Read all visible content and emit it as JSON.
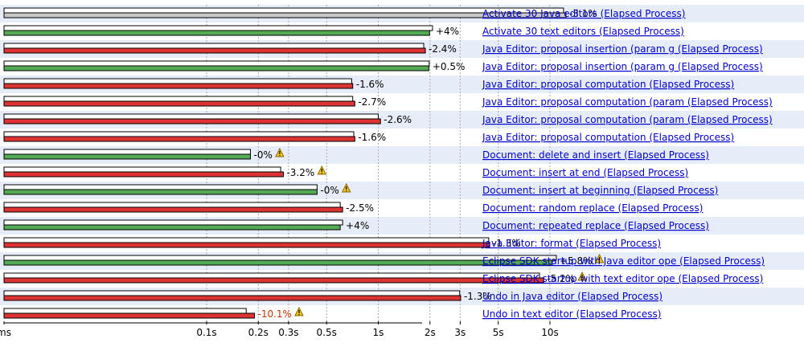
{
  "chart_data": {
    "type": "bar",
    "x_scale": "log",
    "x_ticks": [
      "ms",
      "0.1s",
      "0.2s",
      "0.3s",
      "0.5s",
      "1s",
      "2s",
      "3s",
      "5s",
      "10s"
    ],
    "legend_position": "none",
    "colors": {
      "baseline_bar": "#ffffff",
      "improved_bar": "#55aa55",
      "regressed_bar": "#dd3333",
      "neutral_bar": "#c8c8c8",
      "link": "#0000cc",
      "highlight_delta": "#cc3300",
      "row_band": "#e6ecf8",
      "gridline": "#aaaaaa"
    },
    "rows": [
      {
        "label": "Activate 30 Java editors (Elapsed Process)",
        "baseline": 12.0,
        "current": 12.4,
        "delta": "-3.1%",
        "status": "neutral",
        "warning": false
      },
      {
        "label": "Activate 30 text editors (Elapsed Process)",
        "baseline": 2.07,
        "current": 1.99,
        "delta": "+4%",
        "status": "improved",
        "warning": false
      },
      {
        "label": "Java Editor: proposal insertion (param g (Elapsed Process)",
        "baseline": 1.84,
        "current": 1.88,
        "delta": "-2.4%",
        "status": "regressed",
        "warning": false
      },
      {
        "label": "Java Editor: proposal insertion (param g (Elapsed Process)",
        "baseline": 1.98,
        "current": 1.97,
        "delta": "+0.5%",
        "status": "improved",
        "warning": false
      },
      {
        "label": "Java Editor: proposal computation (Elapsed Process)",
        "baseline": 0.7,
        "current": 0.71,
        "delta": "-1.6%",
        "status": "regressed",
        "warning": false
      },
      {
        "label": "Java Editor: proposal computation (param (Elapsed Process)",
        "baseline": 0.71,
        "current": 0.73,
        "delta": "-2.7%",
        "status": "regressed",
        "warning": false
      },
      {
        "label": "Java Editor: proposal computation (param (Elapsed Process)",
        "baseline": 1.0,
        "current": 1.03,
        "delta": "-2.6%",
        "status": "regressed",
        "warning": false
      },
      {
        "label": "Java Editor: proposal computation (Elapsed Process)",
        "baseline": 0.72,
        "current": 0.73,
        "delta": "-1.6%",
        "status": "regressed",
        "warning": false
      },
      {
        "label": "Document: delete and insert (Elapsed Process)",
        "baseline": 0.18,
        "current": 0.18,
        "delta": "-0%",
        "status": "improved",
        "warning": true
      },
      {
        "label": "Document: insert at end (Elapsed Process)",
        "baseline": 0.27,
        "current": 0.28,
        "delta": "-3.2%",
        "status": "regressed",
        "warning": true
      },
      {
        "label": "Document: insert at beginning (Elapsed Process)",
        "baseline": 0.44,
        "current": 0.44,
        "delta": "-0%",
        "status": "improved",
        "warning": true
      },
      {
        "label": "Document: random replace (Elapsed Process)",
        "baseline": 0.6,
        "current": 0.62,
        "delta": "-2.5%",
        "status": "regressed",
        "warning": false
      },
      {
        "label": "Document: repeated replace (Elapsed Process)",
        "baseline": 0.62,
        "current": 0.6,
        "delta": "+4%",
        "status": "improved",
        "warning": false
      },
      {
        "label": "Java Editor: format (Elapsed Process)",
        "baseline": 4.4,
        "current": 4.45,
        "delta": "-1.3%",
        "status": "regressed",
        "warning": false
      },
      {
        "label": "Eclipse SDK startup with Java editor ope (Elapsed Process)",
        "baseline": 10.9,
        "current": 10.3,
        "delta": "+5.8%",
        "status": "improved",
        "warning": true
      },
      {
        "label": "Eclipse SDK startup with text editor ope (Elapsed Process)",
        "baseline": 8.7,
        "current": 9.2,
        "delta": "-5.2%",
        "status": "regressed",
        "warning": true
      },
      {
        "label": "Undo in Java editor (Elapsed Process)",
        "baseline": 2.98,
        "current": 3.02,
        "delta": "-1.3%",
        "status": "regressed",
        "warning": false
      },
      {
        "label": "Undo in text editor (Elapsed Process)",
        "baseline": 0.17,
        "current": 0.19,
        "delta": "-10.1%",
        "status": "regressed",
        "warning": true,
        "delta_highlight": true
      }
    ]
  }
}
